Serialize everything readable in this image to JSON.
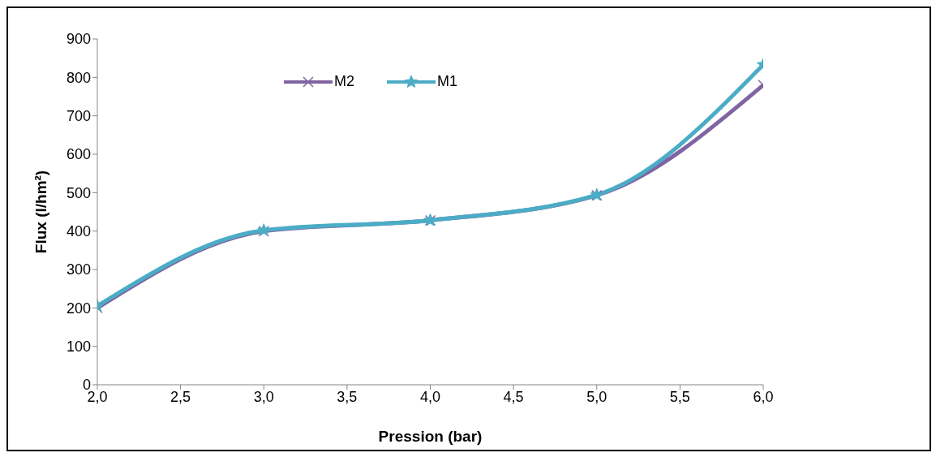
{
  "chart_data": {
    "type": "line",
    "xlabel": "Pression (bar)",
    "ylabel": "Flux (l/hm²)",
    "x": [
      2,
      3,
      4,
      5,
      6
    ],
    "series": [
      {
        "name": "M2",
        "color": "#8064a2",
        "marker": "cross",
        "values": [
          200,
          400,
          428,
          493,
          780
        ]
      },
      {
        "name": "M1",
        "color": "#4bacc6",
        "marker": "star",
        "values": [
          205,
          402,
          428,
          494,
          833
        ]
      }
    ],
    "xlim": [
      2,
      6
    ],
    "xticks": [
      {
        "value": 2,
        "label": "2,0"
      },
      {
        "value": 2.5,
        "label": "2,5"
      },
      {
        "value": 3,
        "label": "3,0"
      },
      {
        "value": 3.5,
        "label": "3,5"
      },
      {
        "value": 4,
        "label": "4,0"
      },
      {
        "value": 4.5,
        "label": "4,5"
      },
      {
        "value": 5,
        "label": "5,0"
      },
      {
        "value": 5.5,
        "label": "5,5"
      },
      {
        "value": 6,
        "label": "6,0"
      }
    ],
    "ylim": [
      0,
      900
    ],
    "yticks": [
      0,
      100,
      200,
      300,
      400,
      500,
      600,
      700,
      800,
      900
    ],
    "grid": false,
    "legend": "top"
  }
}
